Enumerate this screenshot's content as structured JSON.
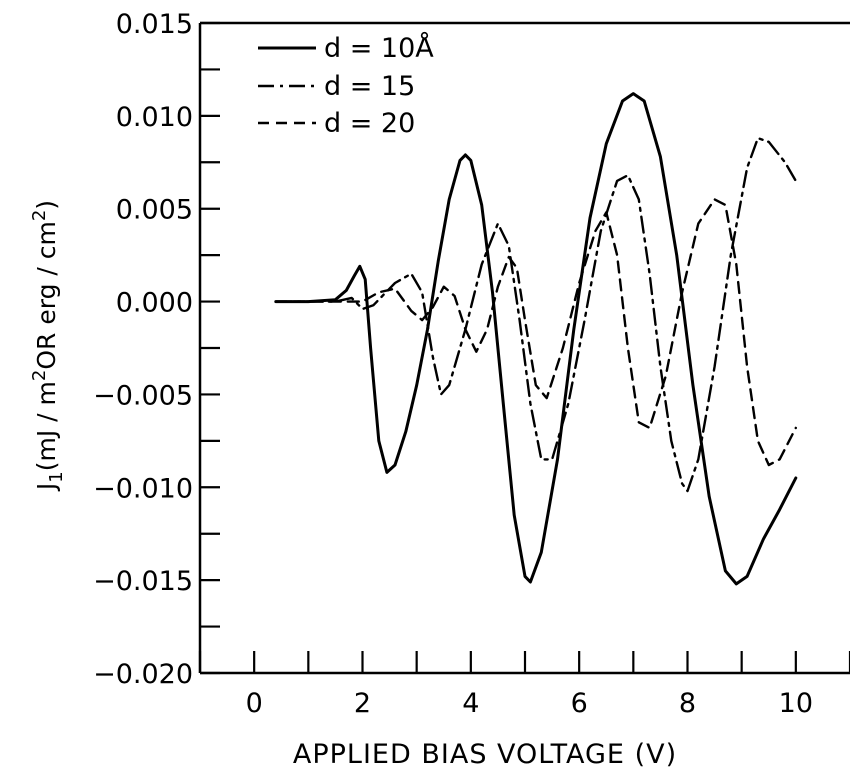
{
  "chart_data": {
    "type": "line",
    "title": "",
    "xlabel": "APPLIED BIAS VOLTAGE (V)",
    "ylabel": {
      "main": "J",
      "sub": "1",
      "rest1": "(mJ / m",
      "sup1": "2",
      "rest2": "OR erg / cm",
      "sup2": "2",
      "rest3": ")"
    },
    "xlim": [
      -1,
      11
    ],
    "ylim": [
      -0.02,
      0.015
    ],
    "x_ticks": [
      0,
      2,
      4,
      6,
      8,
      10
    ],
    "x_tick_labels": [
      "0",
      "2",
      "4",
      "6",
      "8",
      "10"
    ],
    "y_ticks": [
      -0.02,
      -0.015,
      -0.01,
      -0.005,
      0.0,
      0.005,
      0.01,
      0.015
    ],
    "y_tick_labels": [
      "−0.020",
      "−0.015",
      "−0.010",
      "−0.005",
      "0.000",
      "0.005",
      "0.010",
      "0.015"
    ],
    "grid": false,
    "legend_position": "top-left",
    "series": [
      {
        "name": "d = 10Å",
        "style": "solid",
        "color": "#000000",
        "points": [
          [
            0.4,
            0.0
          ],
          [
            1.0,
            0.0
          ],
          [
            1.5,
            0.0001
          ],
          [
            1.7,
            0.0006
          ],
          [
            1.85,
            0.0014
          ],
          [
            1.95,
            0.0019
          ],
          [
            2.05,
            0.0012
          ],
          [
            2.15,
            -0.0025
          ],
          [
            2.3,
            -0.0075
          ],
          [
            2.45,
            -0.0092
          ],
          [
            2.6,
            -0.0088
          ],
          [
            2.8,
            -0.007
          ],
          [
            3.0,
            -0.0045
          ],
          [
            3.2,
            -0.0015
          ],
          [
            3.4,
            0.0022
          ],
          [
            3.6,
            0.0055
          ],
          [
            3.8,
            0.0076
          ],
          [
            3.9,
            0.0079
          ],
          [
            4.0,
            0.0076
          ],
          [
            4.2,
            0.0052
          ],
          [
            4.4,
            0.0005
          ],
          [
            4.6,
            -0.0055
          ],
          [
            4.8,
            -0.0115
          ],
          [
            5.0,
            -0.0148
          ],
          [
            5.1,
            -0.0151
          ],
          [
            5.3,
            -0.0135
          ],
          [
            5.6,
            -0.0085
          ],
          [
            5.9,
            -0.0015
          ],
          [
            6.2,
            0.0045
          ],
          [
            6.5,
            0.0085
          ],
          [
            6.8,
            0.0108
          ],
          [
            7.0,
            0.0112
          ],
          [
            7.2,
            0.0108
          ],
          [
            7.5,
            0.0078
          ],
          [
            7.8,
            0.0025
          ],
          [
            8.1,
            -0.0045
          ],
          [
            8.4,
            -0.0105
          ],
          [
            8.7,
            -0.0145
          ],
          [
            8.9,
            -0.0152
          ],
          [
            9.1,
            -0.0148
          ],
          [
            9.4,
            -0.0128
          ],
          [
            9.7,
            -0.0112
          ],
          [
            10.0,
            -0.0095
          ]
        ]
      },
      {
        "name": "d = 15",
        "style": "dashdot",
        "color": "#000000",
        "points": [
          [
            0.4,
            0.0
          ],
          [
            1.5,
            0.0
          ],
          [
            1.8,
            0.0002
          ],
          [
            2.0,
            -0.0004
          ],
          [
            2.2,
            -0.0002
          ],
          [
            2.4,
            0.0004
          ],
          [
            2.6,
            0.001
          ],
          [
            2.9,
            0.0015
          ],
          [
            3.1,
            0.0005
          ],
          [
            3.3,
            -0.003
          ],
          [
            3.45,
            -0.005
          ],
          [
            3.6,
            -0.0045
          ],
          [
            3.9,
            -0.0015
          ],
          [
            4.2,
            0.002
          ],
          [
            4.5,
            0.0042
          ],
          [
            4.7,
            0.003
          ],
          [
            4.9,
            -0.001
          ],
          [
            5.1,
            -0.0055
          ],
          [
            5.3,
            -0.0085
          ],
          [
            5.5,
            -0.0085
          ],
          [
            5.8,
            -0.0055
          ],
          [
            6.1,
            -0.001
          ],
          [
            6.4,
            0.0038
          ],
          [
            6.7,
            0.0065
          ],
          [
            6.9,
            0.0068
          ],
          [
            7.1,
            0.0055
          ],
          [
            7.3,
            0.0015
          ],
          [
            7.5,
            -0.0035
          ],
          [
            7.7,
            -0.0075
          ],
          [
            7.9,
            -0.0098
          ],
          [
            8.0,
            -0.0102
          ],
          [
            8.2,
            -0.0085
          ],
          [
            8.5,
            -0.0035
          ],
          [
            8.8,
            0.0025
          ],
          [
            9.1,
            0.0072
          ],
          [
            9.3,
            0.0088
          ],
          [
            9.5,
            0.0086
          ],
          [
            9.8,
            0.0075
          ],
          [
            10.0,
            0.0065
          ]
        ]
      },
      {
        "name": "d = 20",
        "style": "dashed",
        "color": "#000000",
        "points": [
          [
            0.4,
            0.0
          ],
          [
            1.5,
            0.0
          ],
          [
            2.0,
            0.0
          ],
          [
            2.3,
            0.0005
          ],
          [
            2.6,
            0.0007
          ],
          [
            2.9,
            -0.0005
          ],
          [
            3.1,
            -0.001
          ],
          [
            3.3,
            -0.0003
          ],
          [
            3.5,
            0.0008
          ],
          [
            3.7,
            0.0003
          ],
          [
            3.9,
            -0.0015
          ],
          [
            4.1,
            -0.0027
          ],
          [
            4.3,
            -0.0015
          ],
          [
            4.5,
            0.0008
          ],
          [
            4.7,
            0.0024
          ],
          [
            4.85,
            0.0018
          ],
          [
            5.0,
            -0.001
          ],
          [
            5.2,
            -0.0045
          ],
          [
            5.4,
            -0.0052
          ],
          [
            5.7,
            -0.0025
          ],
          [
            6.0,
            0.001
          ],
          [
            6.3,
            0.0038
          ],
          [
            6.5,
            0.0048
          ],
          [
            6.7,
            0.0025
          ],
          [
            6.9,
            -0.0025
          ],
          [
            7.1,
            -0.0065
          ],
          [
            7.3,
            -0.0068
          ],
          [
            7.6,
            -0.004
          ],
          [
            7.9,
            0.0005
          ],
          [
            8.2,
            0.0042
          ],
          [
            8.5,
            0.0055
          ],
          [
            8.7,
            0.0052
          ],
          [
            8.9,
            0.002
          ],
          [
            9.1,
            -0.0035
          ],
          [
            9.3,
            -0.0075
          ],
          [
            9.5,
            -0.0088
          ],
          [
            9.7,
            -0.0085
          ],
          [
            10.0,
            -0.0068
          ]
        ]
      }
    ]
  }
}
